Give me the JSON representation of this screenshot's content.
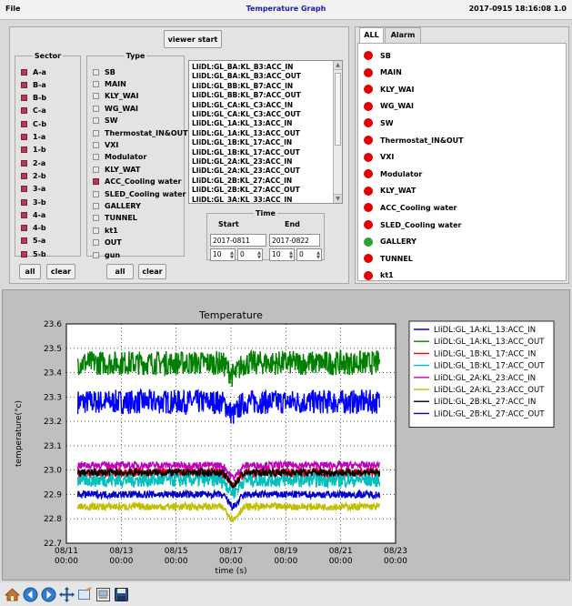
{
  "menu": {
    "file_label": "File"
  },
  "app_title": "Temperature Graph",
  "datetime": "2017-0915 18:16:08  1.0",
  "controls": {
    "viewer_start_label": "viewer start",
    "sector": {
      "legend": "Sector",
      "items": [
        {
          "label": "A-a",
          "checked": true
        },
        {
          "label": "B-a",
          "checked": true
        },
        {
          "label": "B-b",
          "checked": true
        },
        {
          "label": "C-a",
          "checked": true
        },
        {
          "label": "C-b",
          "checked": true
        },
        {
          "label": "1-a",
          "checked": true
        },
        {
          "label": "1-b",
          "checked": true
        },
        {
          "label": "2-a",
          "checked": true
        },
        {
          "label": "2-b",
          "checked": true
        },
        {
          "label": "3-a",
          "checked": true
        },
        {
          "label": "3-b",
          "checked": true
        },
        {
          "label": "4-a",
          "checked": true
        },
        {
          "label": "4-b",
          "checked": true
        },
        {
          "label": "5-a",
          "checked": true
        },
        {
          "label": "5-b",
          "checked": true
        }
      ]
    },
    "type": {
      "legend": "Type",
      "items": [
        {
          "label": "SB",
          "checked": false
        },
        {
          "label": "MAIN",
          "checked": false
        },
        {
          "label": "KLY_WAI",
          "checked": false
        },
        {
          "label": "WG_WAI",
          "checked": false
        },
        {
          "label": "SW",
          "checked": false
        },
        {
          "label": "Thermostat_IN&OUT",
          "checked": false
        },
        {
          "label": "VXI",
          "checked": false
        },
        {
          "label": "Modulator",
          "checked": false
        },
        {
          "label": "KLY_WAT",
          "checked": false
        },
        {
          "label": "ACC_Cooling water",
          "checked": true
        },
        {
          "label": "SLED_Cooling water",
          "checked": false
        },
        {
          "label": "GALLERY",
          "checked": false
        },
        {
          "label": "TUNNEL",
          "checked": false
        },
        {
          "label": "kt1",
          "checked": false
        },
        {
          "label": "OUT",
          "checked": false
        },
        {
          "label": "gun",
          "checked": false
        }
      ]
    },
    "sector_all_label": "all",
    "sector_clear_label": "clear",
    "type_all_label": "all",
    "type_clear_label": "clear",
    "signals": [
      "LIiDL:GL_BA:KL_B3:ACC_IN",
      "LIiDL:GL_BA:KL_B3:ACC_OUT",
      "LIiDL:GL_BB:KL_B7:ACC_IN",
      "LIiDL:GL_BB:KL_B7:ACC_OUT",
      "LIiDL:GL_CA:KL_C3:ACC_IN",
      "LIiDL:GL_CA:KL_C3:ACC_OUT",
      "LIiDL:GL_1A:KL_13:ACC_IN",
      "LIiDL:GL_1A:KL_13:ACC_OUT",
      "LIiDL:GL_1B:KL_17:ACC_IN",
      "LIiDL:GL_1B:KL_17:ACC_OUT",
      "LIiDL:GL_2A:KL_23:ACC_IN",
      "LIiDL:GL_2A:KL_23:ACC_OUT",
      "LIiDL:GL_2B:KL_27:ACC_IN",
      "LIiDL:GL_2B:KL_27:ACC_OUT",
      "LIiDL:GL_3A:KL_33:ACC_IN"
    ],
    "time": {
      "legend": "Time",
      "start_label": "Start",
      "end_label": "End",
      "start_date": "2017-0811",
      "end_date": "2017-0822",
      "start_hour": "10",
      "start_min": "0",
      "end_hour": "10",
      "end_min": "0"
    }
  },
  "status": {
    "tabs": [
      "ALL",
      "Alarm"
    ],
    "items": [
      {
        "label": "SB",
        "color": "#e00000"
      },
      {
        "label": "MAIN",
        "color": "#e00000"
      },
      {
        "label": "KLY_WAI",
        "color": "#e00000"
      },
      {
        "label": "WG_WAI",
        "color": "#e00000"
      },
      {
        "label": "SW",
        "color": "#e00000"
      },
      {
        "label": "Thermostat_IN&OUT",
        "color": "#e00000"
      },
      {
        "label": "VXI",
        "color": "#e00000"
      },
      {
        "label": "Modulator",
        "color": "#e00000"
      },
      {
        "label": "KLY_WAT",
        "color": "#e00000"
      },
      {
        "label": "ACC_Cooling water",
        "color": "#e00000"
      },
      {
        "label": "SLED_Cooling water",
        "color": "#e00000"
      },
      {
        "label": "GALLERY",
        "color": "#2ea02e"
      },
      {
        "label": "TUNNEL",
        "color": "#e00000"
      },
      {
        "label": "kt1",
        "color": "#e00000"
      }
    ]
  },
  "chart_data": {
    "type": "line",
    "title": "Temperature",
    "xlabel": "time (s)",
    "ylabel": "temperature(°c)",
    "ylim": [
      22.7,
      23.6
    ],
    "yticks": [
      "22.7",
      "22.8",
      "22.9",
      "23.0",
      "23.1",
      "23.2",
      "23.3",
      "23.4",
      "23.5",
      "23.6"
    ],
    "xlim": [
      "2017-08-11 00:00",
      "2017-08-23 00:00"
    ],
    "xticks": [
      {
        "date": "08/11",
        "time": "00:00"
      },
      {
        "date": "08/13",
        "time": "00:00"
      },
      {
        "date": "08/15",
        "time": "00:00"
      },
      {
        "date": "08/17",
        "time": "00:00"
      },
      {
        "date": "08/19",
        "time": "00:00"
      },
      {
        "date": "08/21",
        "time": "00:00"
      },
      {
        "date": "08/23",
        "time": "00:00"
      }
    ],
    "x_range_data": [
      "2017-08-11 10:00",
      "2017-08-22 10:00"
    ],
    "grid": true,
    "legend_position": "right",
    "series": [
      {
        "name": "LIiDL:GL_1A:KL_13:ACC_IN",
        "color": "#0000ff",
        "level": 23.28,
        "noise": 0.05
      },
      {
        "name": "LIiDL:GL_1A:KL_13:ACC_OUT",
        "color": "#008000",
        "level": 23.44,
        "noise": 0.05
      },
      {
        "name": "LIiDL:GL_1B:KL_17:ACC_IN",
        "color": "#ff0000",
        "level": 22.99,
        "noise": 0.02
      },
      {
        "name": "LIiDL:GL_1B:KL_17:ACC_OUT",
        "color": "#00bfbf",
        "level": 22.96,
        "noise": 0.03
      },
      {
        "name": "LIiDL:GL_2A:KL_23:ACC_IN",
        "color": "#bf00bf",
        "level": 23.02,
        "noise": 0.015
      },
      {
        "name": "LIiDL:GL_2A:KL_23:ACC_OUT",
        "color": "#bfbf00",
        "level": 22.85,
        "noise": 0.015
      },
      {
        "name": "LIiDL:GL_2B:KL_27:ACC_IN",
        "color": "#000000",
        "level": 22.99,
        "noise": 0.015
      },
      {
        "name": "LIiDL:GL_2B:KL_27:ACC_OUT",
        "color": "#0000cc",
        "level": 22.9,
        "noise": 0.015
      }
    ]
  },
  "toolbar": {
    "icons": [
      "home-icon",
      "back-icon",
      "forward-icon",
      "pan-icon",
      "zoom-icon",
      "configure-icon",
      "save-icon"
    ]
  }
}
